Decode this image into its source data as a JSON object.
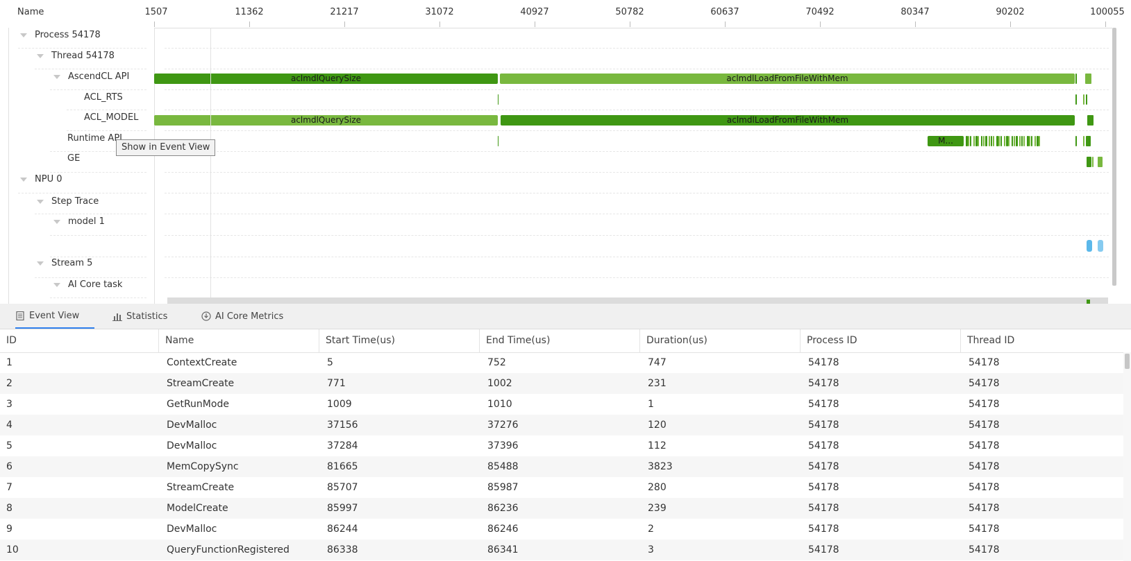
{
  "timeline": {
    "header_name": "Name",
    "ruler": [
      "1507",
      "11362",
      "21217",
      "31072",
      "40927",
      "50782",
      "60637",
      "70492",
      "80347",
      "90202",
      "100055"
    ],
    "tree": [
      {
        "label": "Process 54178",
        "caret": true
      },
      {
        "label": "Thread 54178",
        "caret": true
      },
      {
        "label": "AscendCL API",
        "caret": true
      },
      {
        "label": "ACL_RTS",
        "caret": false
      },
      {
        "label": "ACL_MODEL",
        "caret": false
      },
      {
        "label": "Runtime API",
        "caret": false
      },
      {
        "label": "GE",
        "caret": false
      },
      {
        "label": "NPU 0",
        "caret": true
      },
      {
        "label": "Step Trace",
        "caret": true
      },
      {
        "label": "model 1",
        "caret": true
      },
      {
        "label": "Stream 5",
        "caret": true
      },
      {
        "label": "AI Core task",
        "caret": true
      }
    ],
    "bars": {
      "ascendcl_query": "aclmdlQuerySize",
      "ascendcl_load": "aclmdlLoadFromFileWithMem",
      "model_query": "aclmdlQuerySize",
      "model_load": "aclmdlLoadFromFileWithMem",
      "runtime_block": "M..."
    },
    "tooltip": "Show in Event View",
    "colors": {
      "dark_green": "#3f9713",
      "light_green": "#79b83f",
      "blue": "#5bb8ea"
    }
  },
  "tabs": [
    {
      "label": "Event View",
      "icon": "document-icon",
      "active": true
    },
    {
      "label": "Statistics",
      "icon": "bar-chart-icon",
      "active": false
    },
    {
      "label": "AI Core Metrics",
      "icon": "chip-icon",
      "active": false
    }
  ],
  "table": {
    "columns": [
      "ID",
      "Name",
      "Start Time(us)",
      "End Time(us)",
      "Duration(us)",
      "Process ID",
      "Thread ID"
    ],
    "rows": [
      [
        "1",
        "ContextCreate",
        "5",
        "752",
        "747",
        "54178",
        "54178"
      ],
      [
        "2",
        "StreamCreate",
        "771",
        "1002",
        "231",
        "54178",
        "54178"
      ],
      [
        "3",
        "GetRunMode",
        "1009",
        "1010",
        "1",
        "54178",
        "54178"
      ],
      [
        "4",
        "DevMalloc",
        "37156",
        "37276",
        "120",
        "54178",
        "54178"
      ],
      [
        "5",
        "DevMalloc",
        "37284",
        "37396",
        "112",
        "54178",
        "54178"
      ],
      [
        "6",
        "MemCopySync",
        "81665",
        "85488",
        "3823",
        "54178",
        "54178"
      ],
      [
        "7",
        "StreamCreate",
        "85707",
        "85987",
        "280",
        "54178",
        "54178"
      ],
      [
        "8",
        "ModelCreate",
        "85997",
        "86236",
        "239",
        "54178",
        "54178"
      ],
      [
        "9",
        "DevMalloc",
        "86244",
        "86246",
        "2",
        "54178",
        "54178"
      ],
      [
        "10",
        "QueryFunctionRegistered",
        "86338",
        "86341",
        "3",
        "54178",
        "54178"
      ]
    ]
  }
}
